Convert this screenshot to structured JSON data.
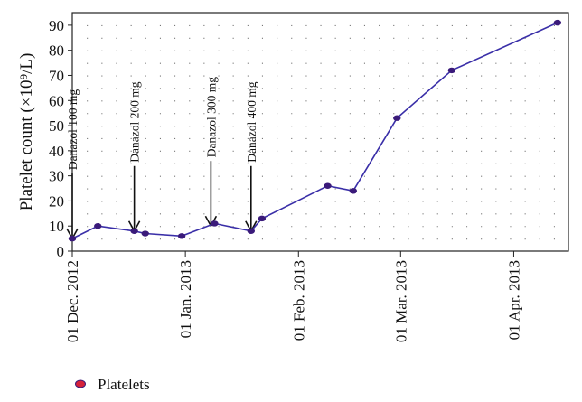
{
  "chart_data": {
    "type": "line",
    "title": "",
    "ylabel": "Platelet count (×10⁹/L)",
    "xlabel": "",
    "ylim": [
      0,
      95
    ],
    "yticks": [
      0,
      10,
      20,
      30,
      40,
      50,
      60,
      70,
      80,
      90
    ],
    "xlim": [
      "2012-12-01",
      "2013-04-16"
    ],
    "xticks": [
      {
        "date": "2012-12-01",
        "label": "01 Dec. 2012"
      },
      {
        "date": "2013-01-01",
        "label": "01 Jan. 2013"
      },
      {
        "date": "2013-02-01",
        "label": "01 Feb. 2013"
      },
      {
        "date": "2013-03-01",
        "label": "01 Mar. 2013"
      },
      {
        "date": "2013-04-01",
        "label": "01 Apr. 2013"
      }
    ],
    "grid": true,
    "legend_position": "bottom-left",
    "series": [
      {
        "name": "Platelets",
        "color": "#3a2fa8",
        "marker_color": "#3a1a7a",
        "points": [
          {
            "x": "2012-12-01",
            "y": 5
          },
          {
            "x": "2012-12-08",
            "y": 10
          },
          {
            "x": "2012-12-18",
            "y": 8
          },
          {
            "x": "2012-12-21",
            "y": 7
          },
          {
            "x": "2012-12-31",
            "y": 6
          },
          {
            "x": "2013-01-09",
            "y": 11
          },
          {
            "x": "2013-01-19",
            "y": 8
          },
          {
            "x": "2013-01-22",
            "y": 13
          },
          {
            "x": "2013-02-09",
            "y": 26
          },
          {
            "x": "2013-02-16",
            "y": 24
          },
          {
            "x": "2013-02-28",
            "y": 53
          },
          {
            "x": "2013-03-15",
            "y": 72
          },
          {
            "x": "2013-04-13",
            "y": 91
          }
        ]
      }
    ],
    "annotations": [
      {
        "text": "Danazol 100 mg",
        "x": "2012-12-01",
        "y": 5
      },
      {
        "text": "Danazol 200 mg",
        "x": "2012-12-18",
        "y": 8
      },
      {
        "text": "Danazol 300 mg",
        "x": "2013-01-08",
        "y": 10
      },
      {
        "text": "Danazol 400 mg",
        "x": "2013-01-19",
        "y": 8
      }
    ]
  },
  "legend": {
    "label": "Platelets",
    "marker_color": "#d6213a"
  }
}
